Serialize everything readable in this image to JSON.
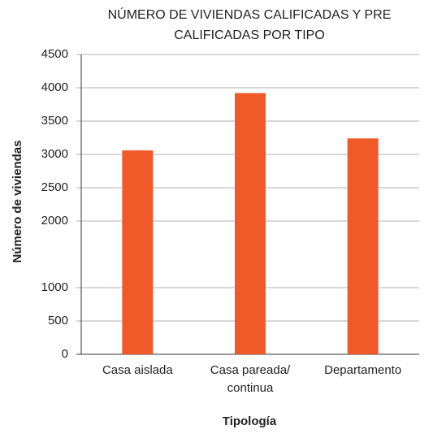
{
  "chart_data": {
    "type": "bar",
    "title": [
      "NÚMERO DE VIVIENDAS CALIFICADAS Y PRE",
      "CALIFICADAS POR TIPO"
    ],
    "x_label": "Tipología",
    "y_label": "Número de viviendas",
    "categories": [
      "Casa aislada",
      "Casa pareada/ continua",
      "Departamento"
    ],
    "values": [
      3060,
      3920,
      3240
    ],
    "color": "#f05a28",
    "ylim": [
      0,
      4500
    ],
    "yticks": [
      0,
      500,
      1000,
      2000,
      2500,
      3000,
      3500,
      4000,
      4500
    ],
    "grid": true
  }
}
